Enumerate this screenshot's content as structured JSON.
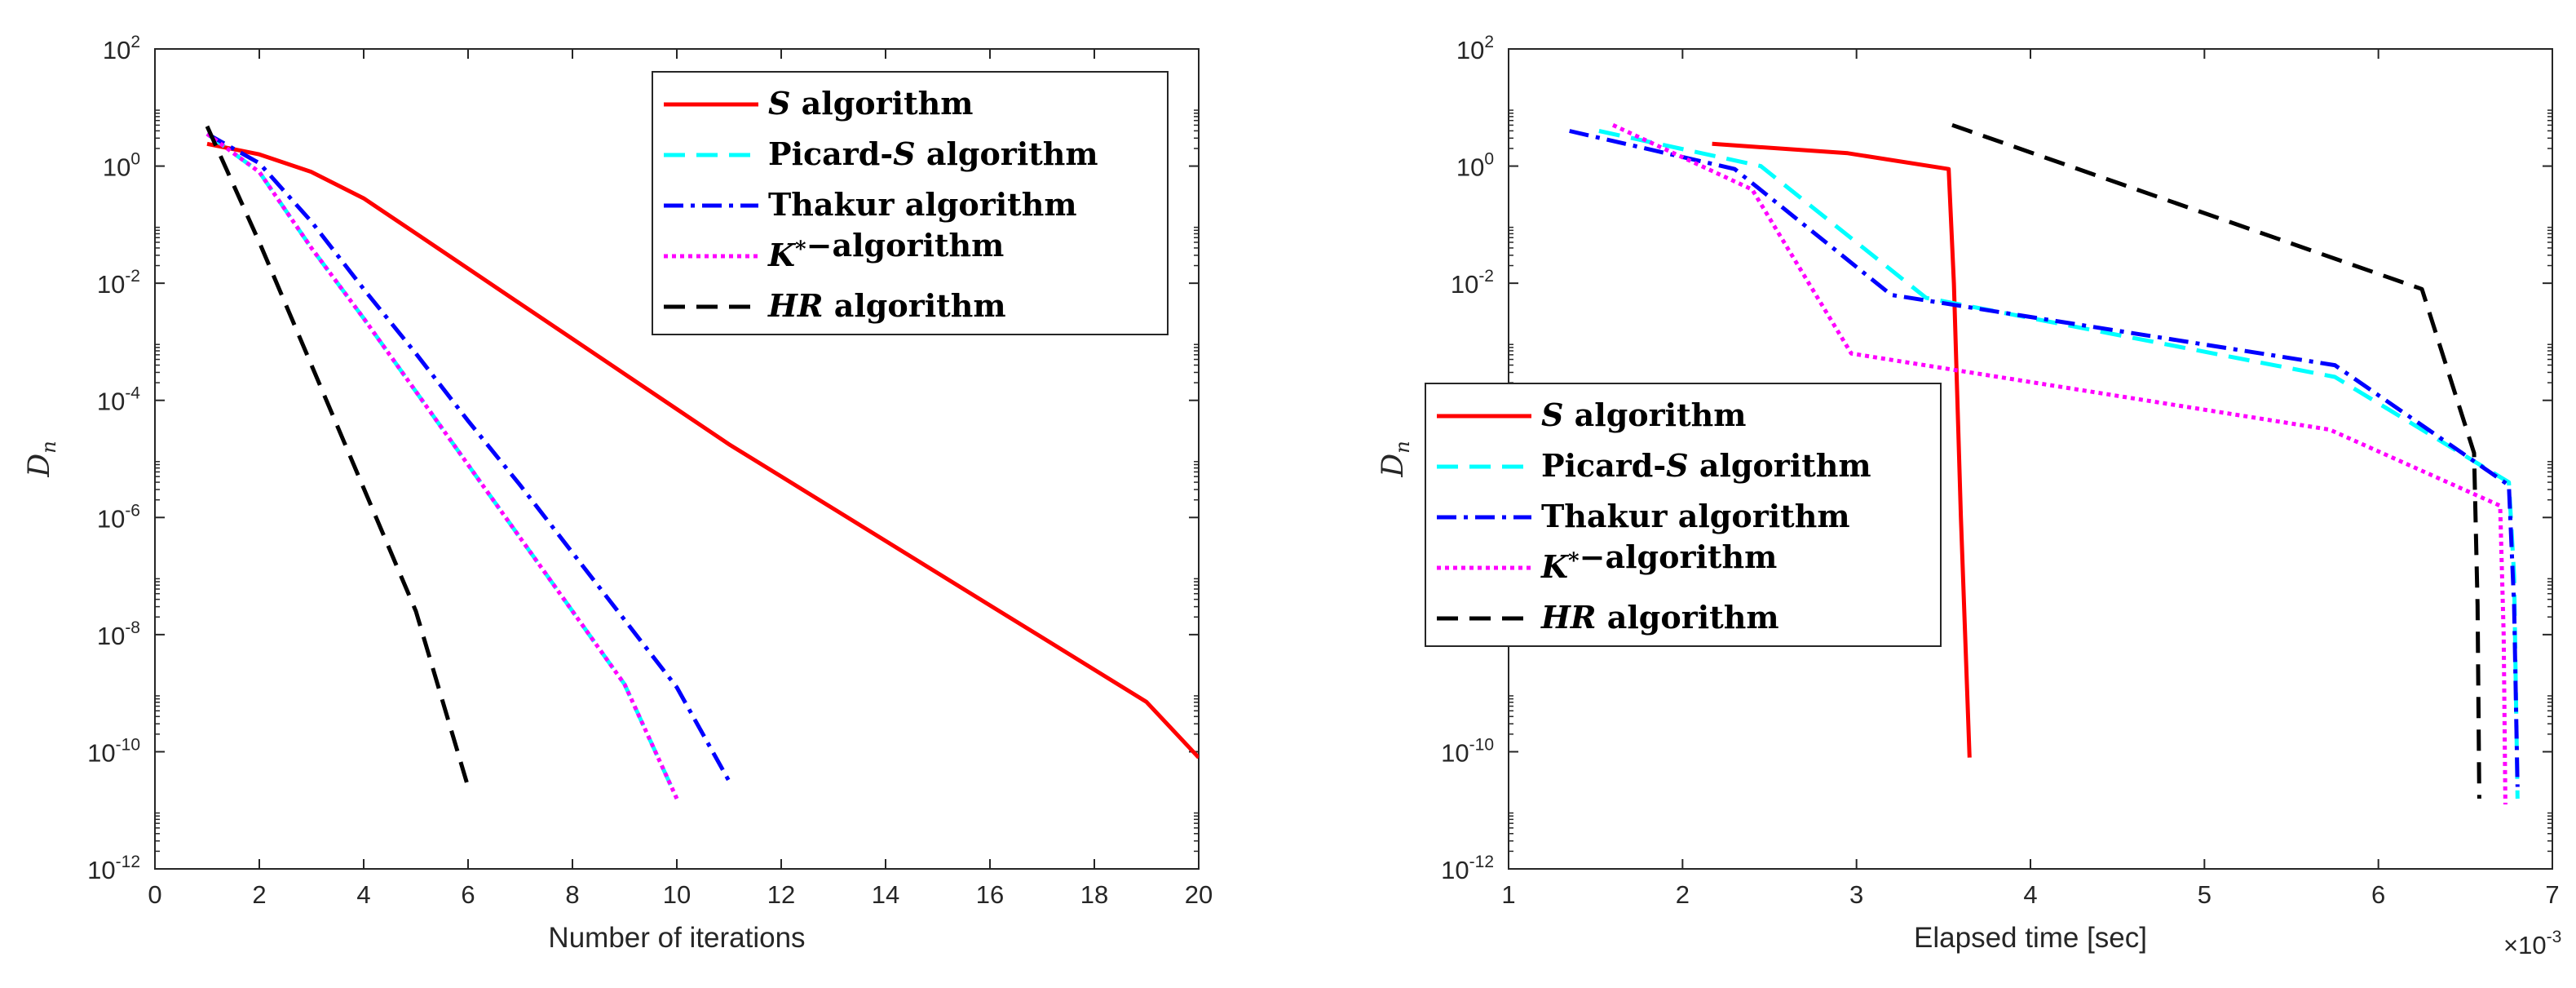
{
  "chart_data": [
    {
      "type": "line",
      "xlabel": "Number of iterations",
      "ylabel": "D_n",
      "yscale": "log",
      "xlim": [
        0,
        20
      ],
      "ylim_exp": [
        -12,
        2
      ],
      "xticks": [
        "0",
        "2",
        "4",
        "6",
        "8",
        "10",
        "12",
        "14",
        "16",
        "18",
        "20"
      ],
      "yticks": [
        "-12",
        "-10",
        "-8",
        "-6",
        "-4",
        "-2",
        "0",
        "2"
      ],
      "legend_position": "top-right",
      "series": [
        {
          "name": "S algorithm",
          "color": "#ff0000",
          "dash": "solid",
          "x": [
            1,
            2,
            3,
            4,
            5,
            6,
            7,
            8,
            9,
            10,
            11,
            12,
            13,
            14,
            15,
            16,
            17,
            18,
            19,
            20
          ],
          "logy": [
            0.38,
            0.2,
            -0.1,
            -0.55,
            -1.15,
            -1.75,
            -2.35,
            -2.95,
            -3.55,
            -4.15,
            -4.75,
            -5.3,
            -5.85,
            -6.4,
            -6.95,
            -7.5,
            -8.05,
            -8.6,
            -9.15,
            -10.1
          ]
        },
        {
          "name": "Picard-S algorithm",
          "color": "#00ffff",
          "dash": "dashed",
          "x": [
            1,
            2,
            3,
            4,
            5,
            6,
            7,
            8,
            9,
            10
          ],
          "logy": [
            0.55,
            -0.1,
            -1.4,
            -2.6,
            -3.85,
            -5.1,
            -6.35,
            -7.6,
            -8.85,
            -10.8
          ]
        },
        {
          "name": "Thakur algorithm",
          "color": "#0000ff",
          "dash": "dashdot",
          "x": [
            1,
            2,
            3,
            4,
            5,
            6,
            7,
            8,
            9,
            10,
            11
          ],
          "logy": [
            0.55,
            0.05,
            -0.95,
            -2.1,
            -3.2,
            -4.35,
            -5.45,
            -6.6,
            -7.75,
            -8.9,
            -10.5
          ]
        },
        {
          "name": "K*-algorithm",
          "color": "#ff00ff",
          "dash": "dotted",
          "x": [
            1,
            2,
            3,
            4,
            5,
            6,
            7,
            8,
            9,
            10
          ],
          "logy": [
            0.55,
            -0.1,
            -1.4,
            -2.6,
            -3.85,
            -5.1,
            -6.35,
            -7.6,
            -8.85,
            -10.8
          ]
        },
        {
          "name": "HR algorithm",
          "color": "#000000",
          "dash": "dashed",
          "x": [
            1,
            2,
            3,
            4,
            5,
            6
          ],
          "logy": [
            0.68,
            -1.3,
            -3.4,
            -5.5,
            -7.6,
            -10.6
          ]
        }
      ]
    },
    {
      "type": "line",
      "xlabel": "Elapsed time [sec]",
      "ylabel": "D_n",
      "yscale": "log",
      "xlim": [
        1,
        7
      ],
      "ylim_exp": [
        -12,
        2
      ],
      "xticks": [
        "1",
        "2",
        "3",
        "4",
        "5",
        "6",
        "7"
      ],
      "yticks": [
        "-12",
        "-10",
        "-8",
        "-6",
        "-4",
        "-2",
        "0",
        "2"
      ],
      "x_multiplier": "×10",
      "x_multiplier_exp": "-3",
      "legend_position": "middle-left",
      "series": [
        {
          "name": "S algorithm",
          "color": "#ff0000",
          "dash": "solid",
          "x": [
            2.17,
            2.95,
            3.53,
            3.56,
            3.6,
            3.65
          ],
          "logy": [
            0.38,
            0.22,
            -0.05,
            -2.0,
            -6.0,
            -10.1
          ]
        },
        {
          "name": "Picard-S algorithm",
          "color": "#00ffff",
          "dash": "dashed",
          "x": [
            1.52,
            2.45,
            3.4,
            5.75,
            6.75,
            6.78,
            6.8
          ],
          "logy": [
            0.6,
            0.0,
            -2.25,
            -3.6,
            -5.4,
            -7.0,
            -10.8
          ]
        },
        {
          "name": "Thakur algorithm",
          "color": "#0000ff",
          "dash": "dashdot",
          "x": [
            1.35,
            2.3,
            3.2,
            5.75,
            6.75,
            6.78,
            6.8
          ],
          "logy": [
            0.6,
            -0.05,
            -2.2,
            -3.4,
            -5.45,
            -7.5,
            -10.6
          ]
        },
        {
          "name": "K*-algorithm",
          "color": "#ff00ff",
          "dash": "dotted",
          "x": [
            1.6,
            2.4,
            2.97,
            5.72,
            6.7,
            6.72,
            6.73
          ],
          "logy": [
            0.7,
            -0.4,
            -3.2,
            -4.5,
            -5.8,
            -8.0,
            -10.9
          ]
        },
        {
          "name": "HR algorithm",
          "color": "#000000",
          "dash": "dashed",
          "x": [
            3.55,
            6.25,
            6.55,
            6.57,
            6.58
          ],
          "logy": [
            0.7,
            -2.1,
            -4.9,
            -7.5,
            -10.8
          ]
        }
      ]
    }
  ]
}
